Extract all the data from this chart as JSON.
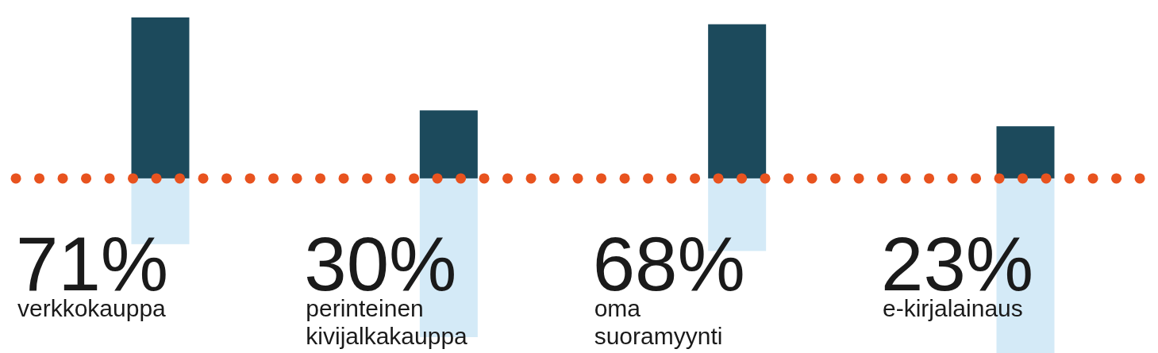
{
  "chart_data": {
    "type": "bar",
    "categories": [
      "verkkokauppa",
      "perinteinen kivijalkakauppa",
      "oma suoramyynti",
      "e-kirjalainaus"
    ],
    "series": [
      {
        "color": "#1c4a5c",
        "values": [
          71,
          30,
          68,
          23
        ],
        "value_labels": [
          "71%",
          "30%",
          "68%",
          "23%"
        ]
      },
      {
        "color": "#d4eaf7",
        "values": [
          -29,
          -70,
          -32,
          -77
        ]
      }
    ],
    "ylim": [
      -77,
      71
    ],
    "tick_labels": "x",
    "stacked": true,
    "ref_lines": [
      {
        "axis": "y",
        "value": 0,
        "color": "#e8531f",
        "line_style": "dotted"
      }
    ]
  }
}
